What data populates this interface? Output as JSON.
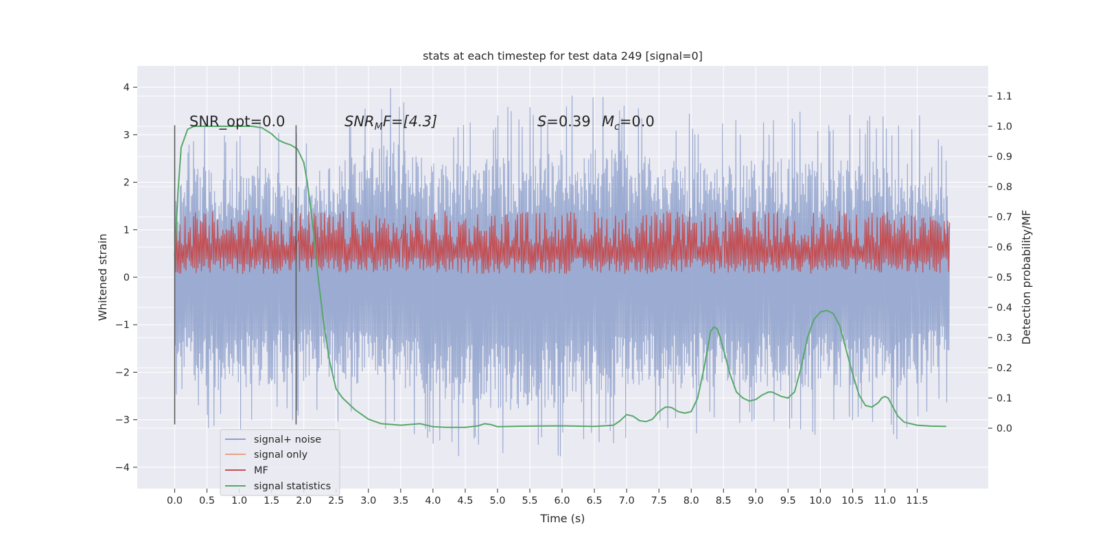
{
  "chart_data": {
    "type": "line",
    "title": "stats at each timestep for test data 249 [signal=0]",
    "xlabel": "Time (s)",
    "ylabel_left": "Whitened strain",
    "ylabel_right": "Detection probability/MF",
    "xlim": [
      -0.58,
      12.6
    ],
    "ylim_left": [
      -4.45,
      4.45
    ],
    "ylim_right": [
      -0.2,
      1.2
    ],
    "xticks": [
      0.0,
      0.5,
      1.0,
      1.5,
      2.0,
      2.5,
      3.0,
      3.5,
      4.0,
      4.5,
      5.0,
      5.5,
      6.0,
      6.5,
      7.0,
      7.5,
      8.0,
      8.5,
      9.0,
      9.5,
      10.0,
      10.5,
      11.0,
      11.5
    ],
    "xtick_labels": [
      "0.0",
      "0.5",
      "1.0",
      "1.5",
      "2.0",
      "2.5",
      "3.0",
      "3.5",
      "4.0",
      "4.5",
      "5.0",
      "5.5",
      "6.0",
      "6.5",
      "7.0",
      "7.5",
      "8.0",
      "8.5",
      "9.0",
      "9.5",
      "10.0",
      "10.5",
      "11.0",
      "11.5"
    ],
    "yticks_left": [
      -4,
      -3,
      -2,
      -1,
      0,
      1,
      2,
      3,
      4
    ],
    "ytick_labels_left": [
      "−4",
      "−3",
      "−2",
      "−1",
      "0",
      "1",
      "2",
      "3",
      "4"
    ],
    "yticks_right": [
      0.0,
      0.1,
      0.2,
      0.3,
      0.4,
      0.5,
      0.6,
      0.7,
      0.8,
      0.9,
      1.0,
      1.1
    ],
    "ytick_labels_right": [
      "0.0",
      "0.1",
      "0.2",
      "0.3",
      "0.4",
      "0.5",
      "0.6",
      "0.7",
      "0.8",
      "0.9",
      "1.0",
      "1.1"
    ],
    "grid": true,
    "legend_position": "lower-left",
    "series": [
      {
        "name": "signal+ noise",
        "axis": "left",
        "color": "#8da0cb",
        "x_range": [
          0.0,
          12.0
        ],
        "envelope_upper": [
          [
            0.0,
            2.6
          ],
          [
            0.3,
            3.3
          ],
          [
            1.3,
            3.3
          ],
          [
            2.0,
            3.0
          ],
          [
            3.3,
            4.1
          ],
          [
            4.0,
            3.4
          ],
          [
            6.4,
            3.9
          ],
          [
            8.4,
            3.4
          ],
          [
            10.0,
            3.6
          ],
          [
            11.7,
            3.4
          ],
          [
            12.0,
            2.7
          ]
        ],
        "envelope_lower": [
          [
            0.0,
            -2.5
          ],
          [
            0.5,
            -3.4
          ],
          [
            2.0,
            -3.1
          ],
          [
            3.0,
            -3.2
          ],
          [
            4.1,
            -3.7
          ],
          [
            5.1,
            -4.0
          ],
          [
            5.8,
            -3.9
          ],
          [
            7.2,
            -3.4
          ],
          [
            8.6,
            -3.3
          ],
          [
            9.6,
            -3.4
          ],
          [
            10.8,
            -3.2
          ],
          [
            11.3,
            -3.5
          ],
          [
            12.0,
            -2.7
          ]
        ]
      },
      {
        "name": "signal only",
        "axis": "left",
        "color": "#e8a187",
        "values": [
          0
        ]
      },
      {
        "name": "MF",
        "axis": "right",
        "color": "#c44e52",
        "x_range": [
          0.0,
          12.0
        ],
        "band": [
          0.5,
          0.72
        ],
        "peaks": [
          [
            1.9,
            0.62
          ],
          [
            3.5,
            0.63
          ],
          [
            8.5,
            0.65
          ]
        ]
      },
      {
        "name": "signal statistics",
        "axis": "right",
        "color": "#55a868",
        "x": [
          0.0,
          0.05,
          0.1,
          0.2,
          0.3,
          0.5,
          0.8,
          1.0,
          1.2,
          1.35,
          1.5,
          1.6,
          1.7,
          1.8,
          1.9,
          2.0,
          2.05,
          2.1,
          2.15,
          2.2,
          2.3,
          2.4,
          2.5,
          2.6,
          2.8,
          3.0,
          3.2,
          3.5,
          3.8,
          4.0,
          4.2,
          4.5,
          4.7,
          4.8,
          4.9,
          5.0,
          5.2,
          5.5,
          6.0,
          6.5,
          6.8,
          6.9,
          7.0,
          7.1,
          7.2,
          7.3,
          7.4,
          7.5,
          7.6,
          7.65,
          7.7,
          7.8,
          7.9,
          8.0,
          8.1,
          8.2,
          8.3,
          8.35,
          8.4,
          8.45,
          8.5,
          8.6,
          8.7,
          8.8,
          8.9,
          9.0,
          9.1,
          9.2,
          9.25,
          9.3,
          9.4,
          9.5,
          9.6,
          9.7,
          9.8,
          9.9,
          10.0,
          10.1,
          10.2,
          10.3,
          10.4,
          10.5,
          10.6,
          10.7,
          10.8,
          10.9,
          10.95,
          11.0,
          11.05,
          11.1,
          11.2,
          11.3,
          11.5,
          11.7,
          11.95
        ],
        "values": [
          0.57,
          0.78,
          0.93,
          0.99,
          1.0,
          1.0,
          1.0,
          1.0,
          1.0,
          0.995,
          0.975,
          0.955,
          0.945,
          0.938,
          0.925,
          0.88,
          0.82,
          0.74,
          0.65,
          0.54,
          0.36,
          0.22,
          0.13,
          0.1,
          0.06,
          0.03,
          0.015,
          0.01,
          0.015,
          0.005,
          0.003,
          0.003,
          0.008,
          0.015,
          0.012,
          0.005,
          0.006,
          0.007,
          0.008,
          0.006,
          0.01,
          0.025,
          0.045,
          0.04,
          0.025,
          0.022,
          0.03,
          0.055,
          0.07,
          0.07,
          0.068,
          0.055,
          0.05,
          0.055,
          0.1,
          0.2,
          0.32,
          0.335,
          0.33,
          0.3,
          0.26,
          0.18,
          0.12,
          0.1,
          0.09,
          0.095,
          0.11,
          0.12,
          0.12,
          0.115,
          0.105,
          0.1,
          0.12,
          0.2,
          0.3,
          0.36,
          0.385,
          0.39,
          0.38,
          0.34,
          0.26,
          0.18,
          0.11,
          0.075,
          0.07,
          0.085,
          0.1,
          0.105,
          0.1,
          0.08,
          0.04,
          0.02,
          0.01,
          0.007,
          0.006
        ]
      }
    ],
    "vlines": [
      0.0,
      1.88
    ],
    "vline_span_left": [
      -3.1,
      3.2
    ],
    "annotations": [
      {
        "text": "SNR_opt=0.0",
        "x": 0.2,
        "y": 3.3
      },
      {
        "text_main": "SNR",
        "text_sub": "M",
        "text_tail": "F=[4.3]",
        "x": 2.6,
        "y": 3.3
      },
      {
        "text_main": "S",
        "text_tail": "=0.39",
        "x": 5.6,
        "y": 3.3
      },
      {
        "text_main": "M",
        "text_sub": "c",
        "text_tail": "=0.0",
        "x": 6.6,
        "y": 3.3
      }
    ]
  }
}
